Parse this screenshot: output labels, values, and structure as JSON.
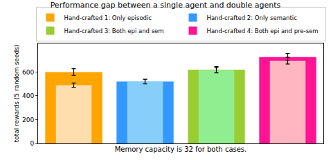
{
  "chart_data": {
    "type": "bar",
    "title": "Performance gap between a single agent and double agents",
    "x_label": "Memory capacity is 32 for both cases.",
    "y_label": "total rewards (5 random seeds)",
    "categories": [
      null,
      null,
      null,
      null
    ],
    "series": [
      {
        "values": [
          600,
          520,
          620,
          725
        ],
        "errors": [
          28,
          20,
          25,
          30
        ],
        "colors": [
          "#ffa500",
          "#3399ff",
          "#9acd32",
          "#ff1493"
        ]
      },
      {
        "values": [
          490,
          520,
          615,
          695
        ],
        "errors": [
          18,
          20,
          22,
          28
        ],
        "colors": [
          "#ffdead",
          "#87cefa",
          "#90ee90",
          "#ffb6c1"
        ]
      }
    ],
    "legend_entries": [
      {
        "name": "Hand-crafted 1: Only episodic",
        "color": "#ffa500"
      },
      {
        "name": "Hand-crafted 2: Only semantic",
        "color": "#3399ff"
      },
      {
        "name": "Hand-crafted 3: Both epi and sem",
        "color": "#9acd32"
      },
      {
        "name": "Hand-crafted 4: Both epi and pre-sem",
        "color": "#ff1493"
      }
    ],
    "ylim": [
      0,
      840
    ],
    "yticks": [
      0,
      200,
      400,
      600
    ],
    "tick_labels": "y",
    "legend": "top",
    "grid": false
  }
}
